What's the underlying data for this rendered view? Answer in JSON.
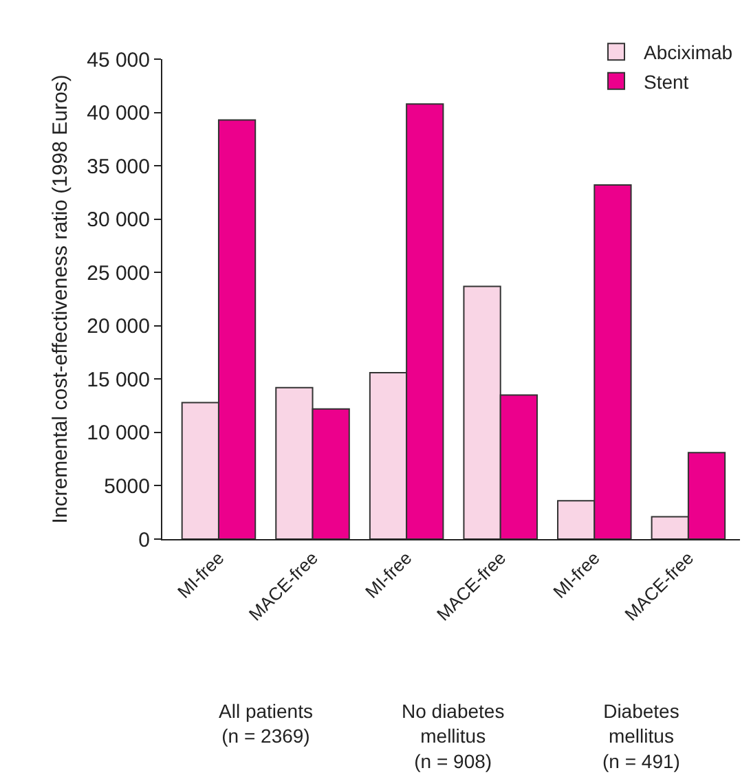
{
  "chart_data": {
    "type": "bar",
    "ylabel": "Incremental cost-effectiveness ratio (1998 Euros)",
    "categories": [
      "MI-free",
      "MACE-free",
      "MI-free",
      "MACE-free",
      "MI-free",
      "MACE-free"
    ],
    "series": [
      {
        "name": "Abciximab",
        "color": "#f9d5e5",
        "values": [
          12800,
          14200,
          15600,
          23700,
          3600,
          2100
        ]
      },
      {
        "name": "Stent",
        "color": "#ec008c",
        "values": [
          39300,
          12200,
          40800,
          13500,
          33200,
          8100
        ]
      }
    ],
    "ylim": [
      0,
      45000
    ],
    "yticks": [
      0,
      5000,
      {
        "value": 10000,
        "label": "10 000"
      },
      {
        "value": 15000,
        "label": "15 000"
      },
      {
        "value": 20000,
        "label": "20 000"
      },
      {
        "value": 25000,
        "label": "25 000"
      },
      {
        "value": 30000,
        "label": "30 000"
      },
      {
        "value": 35000,
        "label": "35 000"
      },
      {
        "value": 40000,
        "label": "40 000"
      },
      {
        "value": 45000,
        "label": "45 000"
      }
    ],
    "annotations": [
      "All patients\n(n = 2369)",
      "No diabetes\nmellitus\n(n = 908)",
      "Diabetes\nmellitus\n(n = 491)"
    ],
    "grid": false,
    "legend": "top right"
  }
}
